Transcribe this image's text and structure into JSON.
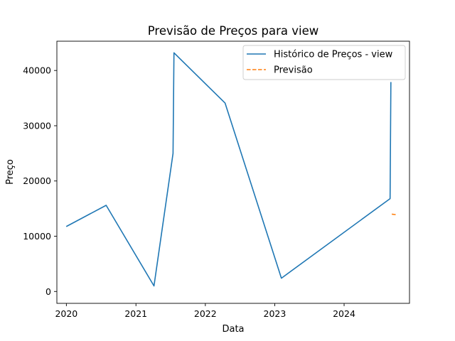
{
  "chart_data": {
    "type": "line",
    "title": "Previsão de Preços para view",
    "xlabel": "Data",
    "ylabel": "Preço",
    "x_is_date": true,
    "xlim": [
      "2019-11-12",
      "2024-12-10"
    ],
    "ylim": [
      -2150,
      45300
    ],
    "xticks": [
      {
        "value": "2020-01-01",
        "label": "2020"
      },
      {
        "value": "2021-01-01",
        "label": "2021"
      },
      {
        "value": "2022-01-01",
        "label": "2022"
      },
      {
        "value": "2023-01-01",
        "label": "2023"
      },
      {
        "value": "2024-01-01",
        "label": "2024"
      }
    ],
    "yticks": [
      {
        "value": 0,
        "label": "0"
      },
      {
        "value": 10000,
        "label": "10000"
      },
      {
        "value": 20000,
        "label": "20000"
      },
      {
        "value": 30000,
        "label": "30000"
      },
      {
        "value": 40000,
        "label": "40000"
      }
    ],
    "grid": false,
    "legend_position": "upper right",
    "series": [
      {
        "name": "Histórico de Preços - view",
        "color": "#1f77b4",
        "style": "solid",
        "points": [
          {
            "x": "2020-01-03",
            "y": 11800
          },
          {
            "x": "2020-07-28",
            "y": 15600
          },
          {
            "x": "2021-04-06",
            "y": 1000
          },
          {
            "x": "2021-07-15",
            "y": 25000
          },
          {
            "x": "2021-07-20",
            "y": 43200
          },
          {
            "x": "2022-04-15",
            "y": 34100
          },
          {
            "x": "2023-02-05",
            "y": 2400
          },
          {
            "x": "2024-08-30",
            "y": 16800
          },
          {
            "x": "2024-09-03",
            "y": 37800
          }
        ]
      },
      {
        "name": "Previsão",
        "color": "#ff7f0e",
        "style": "dashed",
        "points": [
          {
            "x": "2024-09-08",
            "y": 14000
          },
          {
            "x": "2024-09-30",
            "y": 13900
          }
        ]
      }
    ]
  }
}
